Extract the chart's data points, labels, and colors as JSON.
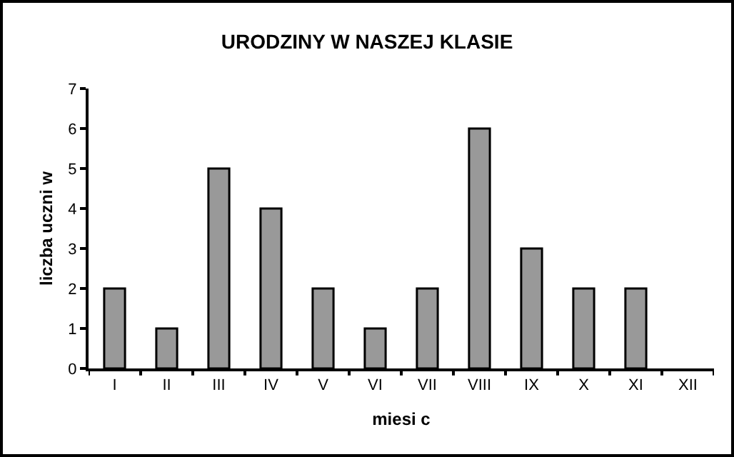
{
  "chart_data": {
    "type": "bar",
    "title": "URODZINY W NASZEJ KLASIE",
    "xlabel": "miesi c",
    "ylabel": "liczba uczni w",
    "categories": [
      "I",
      "II",
      "III",
      "IV",
      "V",
      "VI",
      "VII",
      "VIII",
      "IX",
      "X",
      "XI",
      "XII"
    ],
    "values": [
      2,
      1,
      5,
      4,
      2,
      1,
      2,
      6,
      3,
      2,
      2,
      0
    ],
    "color": "#999999",
    "ylim": [
      0,
      7
    ],
    "yticks": [
      0,
      1,
      2,
      3,
      4,
      5,
      6,
      7
    ],
    "grid": false,
    "legend": false
  }
}
